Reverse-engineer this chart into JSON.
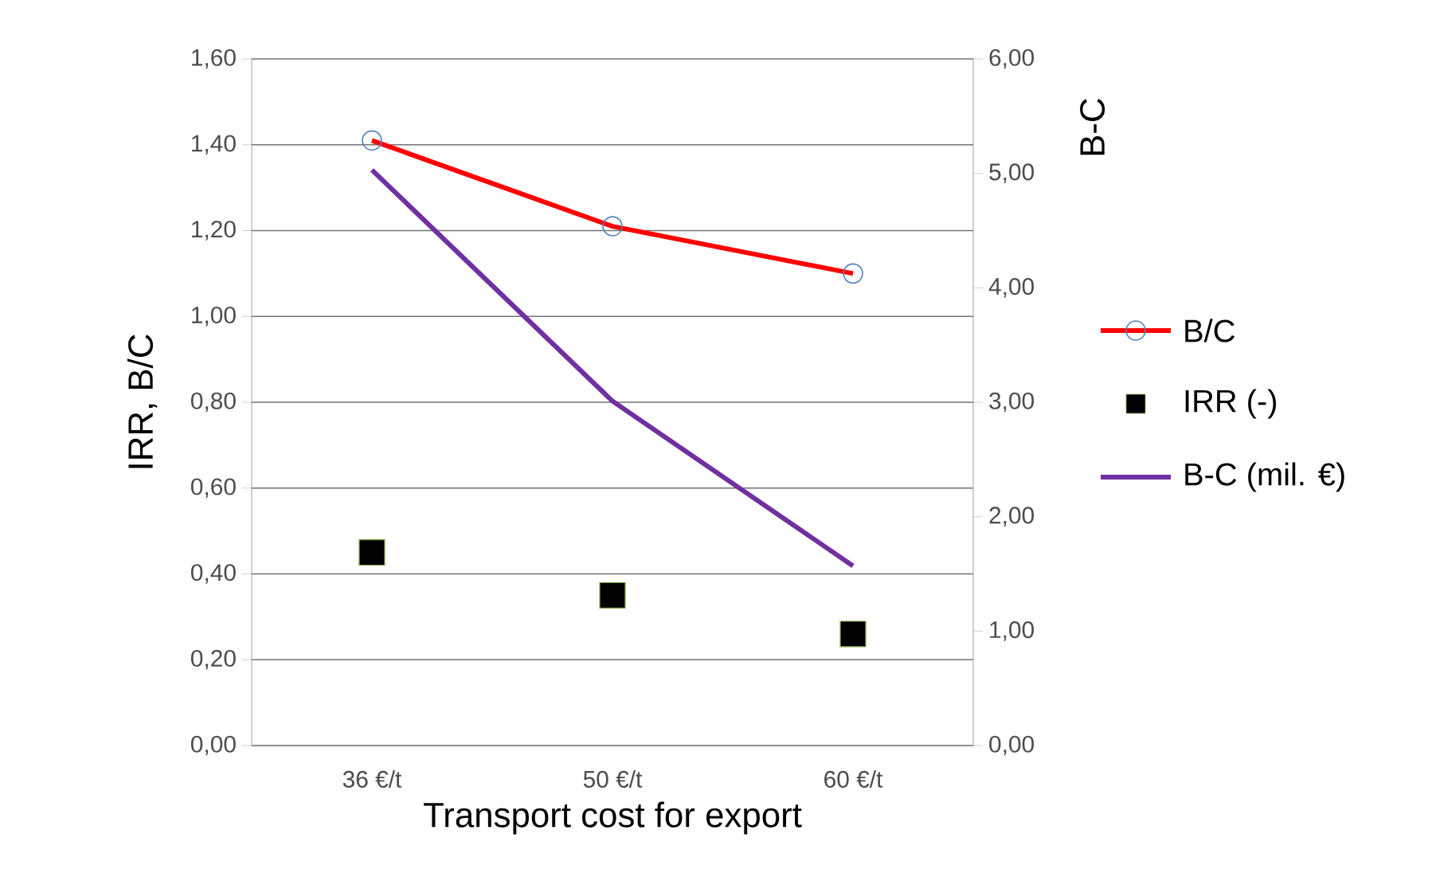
{
  "chart_data": {
    "type": "line",
    "xlabel": "Transport cost for export",
    "ylabel": "IRR,  B/C",
    "y2label": "B-C",
    "categories": [
      "36 €/t",
      "50 €/t",
      "60 €/t"
    ],
    "series": [
      {
        "name": "B/C",
        "color": "#ff0000",
        "colors": [
          "#4f81bd",
          "#4f81bd",
          "#4f81bd"
        ],
        "marker": "circle",
        "values": [
          1.41,
          1.21,
          1.1
        ]
      },
      {
        "name": "IRR (-)",
        "type": "scatter",
        "color": "#000000",
        "marker": "square",
        "values": [
          0.45,
          0.35,
          0.26
        ]
      },
      {
        "name": "B-C (mil. €)",
        "color": "#7030a0",
        "marker": "none",
        "axis": "y2",
        "values": [
          5.03,
          3.01,
          1.57
        ]
      }
    ],
    "ylim": [
      0,
      1.6
    ],
    "yticks": [
      {
        "value": 0,
        "label": "0,00"
      },
      {
        "value": 0.2,
        "label": "0,20"
      },
      {
        "value": 0.4,
        "label": "0,40"
      },
      {
        "value": 0.6,
        "label": "0,60"
      },
      {
        "value": 0.8,
        "label": "0,80"
      },
      {
        "value": 1.0,
        "label": "1,00"
      },
      {
        "value": 1.2,
        "label": "1,20"
      },
      {
        "value": 1.4,
        "label": "1,40"
      },
      {
        "value": 1.6,
        "label": "1,60"
      }
    ],
    "y2lim": [
      0,
      6
    ],
    "y2ticks": [
      {
        "value": 0,
        "label": "0,00"
      },
      {
        "value": 1,
        "label": "1,00"
      },
      {
        "value": 2,
        "label": "2,00"
      },
      {
        "value": 3,
        "label": "3,00"
      },
      {
        "value": 4,
        "label": "4,00"
      },
      {
        "value": 5,
        "label": "5,00"
      },
      {
        "value": 6,
        "label": "6,00"
      }
    ],
    "grid": "y",
    "legend": "right"
  }
}
